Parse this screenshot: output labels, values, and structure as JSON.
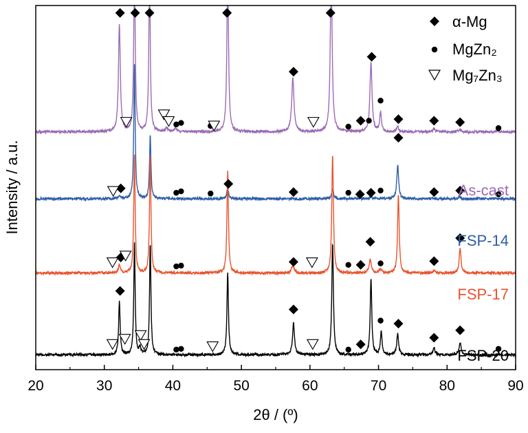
{
  "chart_data": {
    "type": "line",
    "xlabel": "2θ / (º)",
    "ylabel": "Intensity / a.u.",
    "xlim": [
      20,
      90
    ],
    "xticks": [
      20,
      30,
      40,
      50,
      60,
      70,
      80,
      90
    ],
    "ylim": [
      -2,
      47
    ],
    "grid": false,
    "legend": {
      "placement": "top-right",
      "entries": [
        {
          "symbol": "diamond",
          "text": "α-Mg"
        },
        {
          "symbol": "dot",
          "text": "MgZn₂"
        },
        {
          "symbol": "triangle-down",
          "text": "Mg₇Zn₃"
        }
      ]
    },
    "series": [
      {
        "name": "As-cast",
        "color": "#9b6bb4",
        "baseline": 30,
        "peaks": [
          [
            32.2,
            14.5,
            0.16
          ],
          [
            34.4,
            22,
            0.13
          ],
          [
            36.6,
            22,
            0.12
          ],
          [
            48.0,
            22,
            0.14
          ],
          [
            57.5,
            7.2,
            0.2
          ],
          [
            63.1,
            22,
            0.16
          ],
          [
            68.9,
            9.3,
            0.18
          ],
          [
            70.3,
            2.6,
            0.15
          ],
          [
            72.8,
            0.7,
            0.15
          ],
          [
            78.1,
            0.4,
            0.2
          ],
          [
            81.8,
            0.3,
            0.2
          ],
          [
            39.1,
            0.5,
            0.2
          ],
          [
            40.4,
            0.5,
            0.2
          ]
        ]
      },
      {
        "name": "FSP-14",
        "color": "#2e5ea8",
        "baseline": 21,
        "peaks": [
          [
            34.4,
            18,
            0.12
          ],
          [
            36.7,
            8.7,
            0.12
          ],
          [
            32.2,
            0.5,
            0.15
          ],
          [
            48.0,
            1.5,
            0.14
          ],
          [
            63.3,
            1.3,
            0.16
          ],
          [
            72.8,
            4.6,
            0.16
          ],
          [
            81.8,
            0.3,
            0.2
          ],
          [
            68.9,
            0.3,
            0.2
          ]
        ]
      },
      {
        "name": "FSP-17",
        "color": "#e8542e",
        "baseline": 11,
        "peaks": [
          [
            34.4,
            16,
            0.12
          ],
          [
            36.7,
            16,
            0.12
          ],
          [
            32.2,
            1.2,
            0.15
          ],
          [
            48.0,
            13.9,
            0.13
          ],
          [
            57.5,
            1.1,
            0.2
          ],
          [
            63.3,
            16,
            0.14
          ],
          [
            68.8,
            1.8,
            0.2
          ],
          [
            72.9,
            10.6,
            0.14
          ],
          [
            81.9,
            3.4,
            0.16
          ],
          [
            70.3,
            0.5,
            0.2
          ],
          [
            78.1,
            0.3,
            0.2
          ]
        ]
      },
      {
        "name": "FSP-20",
        "color": "#000000",
        "baseline": 0,
        "peaks": [
          [
            32.2,
            7.3,
            0.13
          ],
          [
            34.4,
            15,
            0.12
          ],
          [
            36.7,
            15,
            0.12
          ],
          [
            35.2,
            0.9,
            0.15
          ],
          [
            48.0,
            11.1,
            0.13
          ],
          [
            57.6,
            4.3,
            0.17
          ],
          [
            63.3,
            15,
            0.14
          ],
          [
            68.9,
            10.2,
            0.14
          ],
          [
            70.4,
            3.1,
            0.15
          ],
          [
            72.8,
            2.8,
            0.16
          ],
          [
            78.1,
            0.9,
            0.17
          ],
          [
            81.9,
            1.6,
            0.17
          ]
        ]
      }
    ],
    "markers": [
      {
        "symbol": "diamond",
        "x": 32.3,
        "y": 46
      },
      {
        "symbol": "diamond",
        "x": 34.5,
        "y": 46
      },
      {
        "symbol": "diamond",
        "x": 36.6,
        "y": 46
      },
      {
        "symbol": "diamond",
        "x": 47.9,
        "y": 46
      },
      {
        "symbol": "diamond",
        "x": 63.0,
        "y": 46
      },
      {
        "symbol": "diamond",
        "x": 57.6,
        "y": 38.1
      },
      {
        "symbol": "diamond",
        "x": 69.0,
        "y": 40.1
      },
      {
        "symbol": "diamond",
        "x": 72.9,
        "y": 31.7
      },
      {
        "symbol": "diamond",
        "x": 67.4,
        "y": 31.5
      },
      {
        "symbol": "diamond",
        "x": 78.1,
        "y": 31.5
      },
      {
        "symbol": "diamond",
        "x": 81.9,
        "y": 31.3
      },
      {
        "symbol": "dot",
        "x": 70.3,
        "y": 34.2
      },
      {
        "symbol": "dot",
        "x": 68.6,
        "y": 31.5
      },
      {
        "symbol": "dot",
        "x": 65.6,
        "y": 30.7
      },
      {
        "symbol": "dot",
        "x": 40.5,
        "y": 31.0
      },
      {
        "symbol": "dot",
        "x": 41.2,
        "y": 31.2
      },
      {
        "symbol": "dot",
        "x": 45.5,
        "y": 30.8
      },
      {
        "symbol": "dot",
        "x": 87.5,
        "y": 30.5
      },
      {
        "symbol": "triangle-down",
        "x": 33.2,
        "y": 31.3
      },
      {
        "symbol": "triangle-down",
        "x": 38.7,
        "y": 32.3
      },
      {
        "symbol": "triangle-down",
        "x": 39.4,
        "y": 31.4
      },
      {
        "symbol": "triangle-down",
        "x": 46.0,
        "y": 30.8
      },
      {
        "symbol": "triangle-down",
        "x": 60.5,
        "y": 31.3
      },
      {
        "symbol": "diamond",
        "x": 32.4,
        "y": 22.4
      },
      {
        "symbol": "diamond",
        "x": 48.1,
        "y": 23.0
      },
      {
        "symbol": "diamond",
        "x": 57.6,
        "y": 21.9
      },
      {
        "symbol": "diamond",
        "x": 67.3,
        "y": 21.6
      },
      {
        "symbol": "diamond",
        "x": 68.9,
        "y": 21.8
      },
      {
        "symbol": "diamond",
        "x": 78.1,
        "y": 21.9
      },
      {
        "symbol": "diamond",
        "x": 81.9,
        "y": 22.1
      },
      {
        "symbol": "dot",
        "x": 40.5,
        "y": 21.8
      },
      {
        "symbol": "dot",
        "x": 41.2,
        "y": 22.0
      },
      {
        "symbol": "dot",
        "x": 45.5,
        "y": 21.7
      },
      {
        "symbol": "dot",
        "x": 65.6,
        "y": 21.8
      },
      {
        "symbol": "dot",
        "x": 70.3,
        "y": 22.1
      },
      {
        "symbol": "dot",
        "x": 87.5,
        "y": 21.6
      },
      {
        "symbol": "triangle-down",
        "x": 31.3,
        "y": 22.0
      },
      {
        "symbol": "diamond",
        "x": 72.9,
        "y": 29.2
      },
      {
        "symbol": "diamond",
        "x": 32.4,
        "y": 13.1
      },
      {
        "symbol": "diamond",
        "x": 57.6,
        "y": 12.5
      },
      {
        "symbol": "diamond",
        "x": 67.4,
        "y": 12.1
      },
      {
        "symbol": "diamond",
        "x": 68.8,
        "y": 15.2
      },
      {
        "symbol": "diamond",
        "x": 78.1,
        "y": 12.6
      },
      {
        "symbol": "diamond",
        "x": 81.9,
        "y": 15.7
      },
      {
        "symbol": "dot",
        "x": 40.5,
        "y": 11.9
      },
      {
        "symbol": "dot",
        "x": 41.2,
        "y": 12.0
      },
      {
        "symbol": "dot",
        "x": 65.6,
        "y": 12.1
      },
      {
        "symbol": "dot",
        "x": 70.3,
        "y": 12.3
      },
      {
        "symbol": "triangle-down",
        "x": 31.2,
        "y": 12.4
      },
      {
        "symbol": "triangle-down",
        "x": 33.1,
        "y": 13.3
      },
      {
        "symbol": "triangle-down",
        "x": 60.3,
        "y": 12.4
      },
      {
        "symbol": "diamond",
        "x": 32.3,
        "y": 8.6
      },
      {
        "symbol": "diamond",
        "x": 57.6,
        "y": 6.1
      },
      {
        "symbol": "diamond",
        "x": 67.4,
        "y": 1.4
      },
      {
        "symbol": "diamond",
        "x": 72.9,
        "y": 4.2
      },
      {
        "symbol": "diamond",
        "x": 78.1,
        "y": 2.3
      },
      {
        "symbol": "diamond",
        "x": 81.9,
        "y": 3.3
      },
      {
        "symbol": "dot",
        "x": 40.5,
        "y": 0.7
      },
      {
        "symbol": "dot",
        "x": 41.2,
        "y": 0.8
      },
      {
        "symbol": "dot",
        "x": 65.6,
        "y": 0.7
      },
      {
        "symbol": "dot",
        "x": 70.3,
        "y": 4.6
      },
      {
        "symbol": "dot",
        "x": 87.5,
        "y": 0.8
      },
      {
        "symbol": "triangle-down",
        "x": 31.2,
        "y": 1.4
      },
      {
        "symbol": "triangle-down",
        "x": 33.0,
        "y": 2.1
      },
      {
        "symbol": "triangle-down",
        "x": 35.3,
        "y": 2.6
      },
      {
        "symbol": "triangle-down",
        "x": 35.8,
        "y": 1.4
      },
      {
        "symbol": "triangle-down",
        "x": 45.8,
        "y": 1.1
      },
      {
        "symbol": "triangle-down",
        "x": 60.4,
        "y": 1.4
      }
    ]
  }
}
